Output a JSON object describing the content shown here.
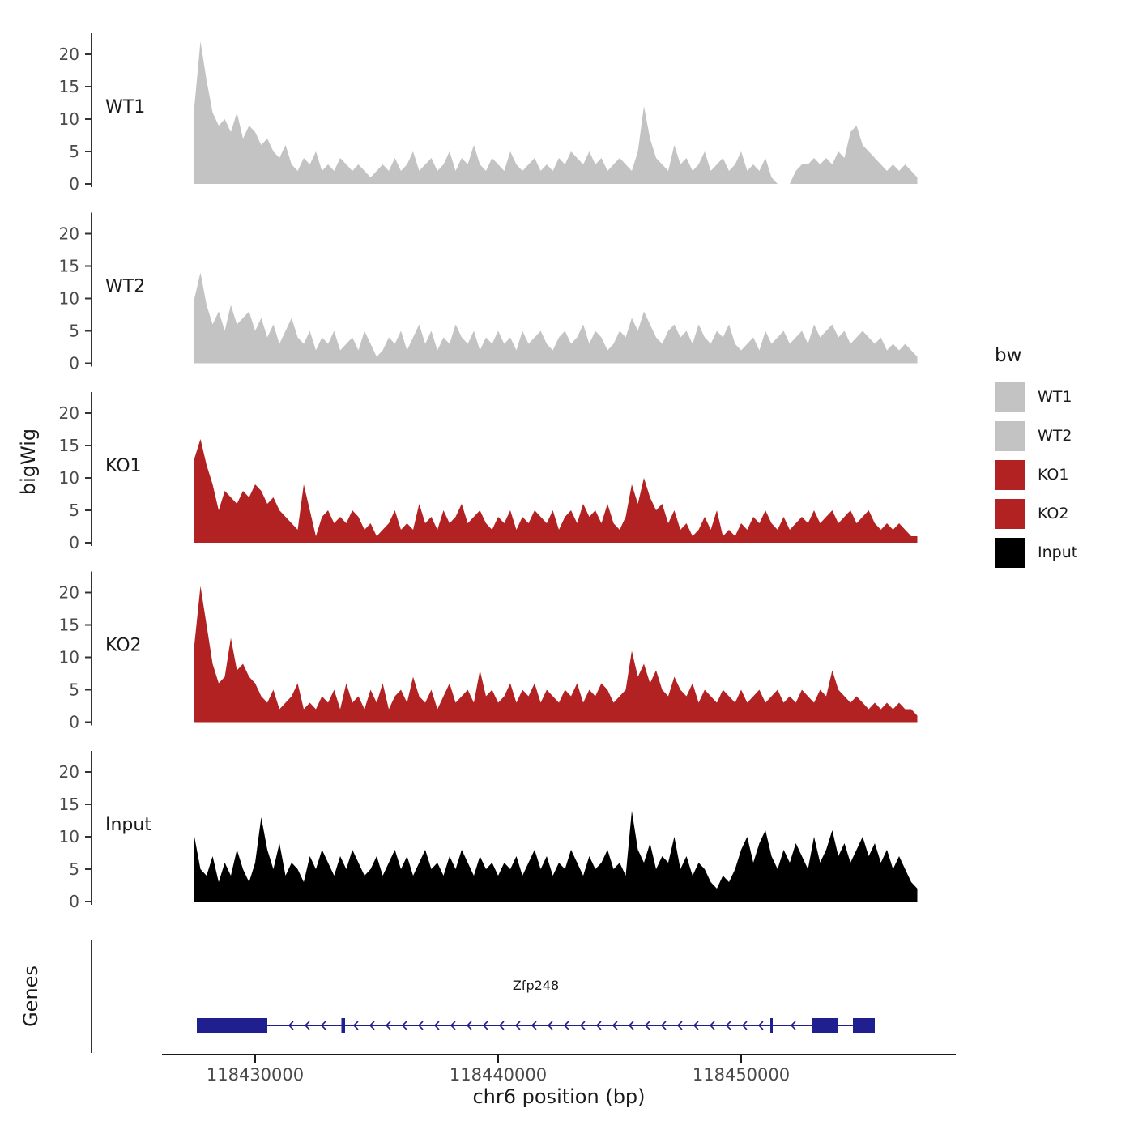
{
  "figure": {
    "y_axis_title": "bigWig",
    "genes_axis_title": "Genes",
    "x_axis_title": "chr6 position (bp)",
    "y_ticks": [
      0,
      5,
      10,
      15,
      20
    ],
    "x_ticks": [
      {
        "pos": 118430000,
        "label": "118430000"
      },
      {
        "pos": 118440000,
        "label": "118440000"
      },
      {
        "pos": 118450000,
        "label": "118450000"
      }
    ]
  },
  "legend": {
    "title": "bw",
    "items": [
      {
        "label": "WT1",
        "color": "#c3c3c3"
      },
      {
        "label": "WT2",
        "color": "#c3c3c3"
      },
      {
        "label": "KO1",
        "color": "#b22222"
      },
      {
        "label": "KO2",
        "color": "#b22222"
      },
      {
        "label": "Input",
        "color": "#000000"
      }
    ]
  },
  "gene": {
    "name": "Zfp248",
    "strand": "-",
    "chrom": "chr6",
    "start": 118427600,
    "end": 118455500,
    "color": "#1f1f90",
    "exons": [
      [
        118427600,
        118430500
      ],
      [
        118433550,
        118433700
      ],
      [
        118451200,
        118451300
      ],
      [
        118452900,
        118454000
      ],
      [
        118454600,
        118455500
      ]
    ]
  },
  "chart_data": {
    "type": "area",
    "title": "",
    "xlabel": "chr6 position (bp)",
    "ylabel": "bigWig",
    "ylim": [
      0,
      23
    ],
    "x_start": 118427500,
    "x_step": 250,
    "x_range": [
      118427500,
      118457250
    ],
    "x_tick_labels": [
      "118430000",
      "118440000",
      "118450000"
    ],
    "y_tick_labels": [
      "0",
      "5",
      "10",
      "15",
      "20"
    ],
    "legend_position": "right",
    "grid": false,
    "tracks": [
      {
        "name": "WT1",
        "color": "#c3c3c3",
        "values": [
          12,
          22,
          16,
          11,
          9,
          10,
          8,
          11,
          7,
          9,
          8,
          6,
          7,
          5,
          4,
          6,
          3,
          2,
          4,
          3,
          5,
          2,
          3,
          2,
          4,
          3,
          2,
          3,
          2,
          1,
          2,
          3,
          2,
          4,
          2,
          3,
          5,
          2,
          3,
          4,
          2,
          3,
          5,
          2,
          4,
          3,
          6,
          3,
          2,
          4,
          3,
          2,
          5,
          3,
          2,
          3,
          4,
          2,
          3,
          2,
          4,
          3,
          5,
          4,
          3,
          5,
          3,
          4,
          2,
          3,
          4,
          3,
          2,
          5,
          12,
          7,
          4,
          3,
          2,
          6,
          3,
          4,
          2,
          3,
          5,
          2,
          3,
          4,
          2,
          3,
          5,
          2,
          3,
          2,
          4,
          1,
          0,
          0,
          0,
          2,
          3,
          3,
          4,
          3,
          4,
          3,
          5,
          4,
          8,
          9,
          6,
          5,
          4,
          3,
          2,
          3,
          2,
          3,
          2,
          1
        ]
      },
      {
        "name": "WT2",
        "color": "#c3c3c3",
        "values": [
          10,
          14,
          9,
          6,
          8,
          5,
          9,
          6,
          7,
          8,
          5,
          7,
          4,
          6,
          3,
          5,
          7,
          4,
          3,
          5,
          2,
          4,
          3,
          5,
          2,
          3,
          4,
          2,
          5,
          3,
          1,
          2,
          4,
          3,
          5,
          2,
          4,
          6,
          3,
          5,
          2,
          4,
          3,
          6,
          4,
          3,
          5,
          2,
          4,
          3,
          5,
          3,
          4,
          2,
          5,
          3,
          4,
          5,
          3,
          2,
          4,
          5,
          3,
          4,
          6,
          3,
          5,
          4,
          2,
          3,
          5,
          4,
          7,
          5,
          8,
          6,
          4,
          3,
          5,
          6,
          4,
          5,
          3,
          6,
          4,
          3,
          5,
          4,
          6,
          3,
          2,
          3,
          4,
          2,
          5,
          3,
          4,
          5,
          3,
          4,
          5,
          3,
          6,
          4,
          5,
          6,
          4,
          5,
          3,
          4,
          5,
          4,
          3,
          4,
          2,
          3,
          2,
          3,
          2,
          1
        ]
      },
      {
        "name": "KO1",
        "color": "#b22222",
        "values": [
          13,
          16,
          12,
          9,
          5,
          8,
          7,
          6,
          8,
          7,
          9,
          8,
          6,
          7,
          5,
          4,
          3,
          2,
          9,
          5,
          1,
          4,
          5,
          3,
          4,
          3,
          5,
          4,
          2,
          3,
          1,
          2,
          3,
          5,
          2,
          3,
          2,
          6,
          3,
          4,
          2,
          5,
          3,
          4,
          6,
          3,
          4,
          5,
          3,
          2,
          4,
          3,
          5,
          2,
          4,
          3,
          5,
          4,
          3,
          5,
          2,
          4,
          5,
          3,
          6,
          4,
          5,
          3,
          6,
          3,
          2,
          4,
          9,
          6,
          10,
          7,
          5,
          6,
          3,
          5,
          2,
          3,
          1,
          2,
          4,
          2,
          5,
          1,
          2,
          1,
          3,
          2,
          4,
          3,
          5,
          3,
          2,
          4,
          2,
          3,
          4,
          3,
          5,
          3,
          4,
          5,
          3,
          4,
          5,
          3,
          4,
          5,
          3,
          2,
          3,
          2,
          3,
          2,
          1,
          1
        ]
      },
      {
        "name": "KO2",
        "color": "#b22222",
        "values": [
          12,
          21,
          15,
          9,
          6,
          7,
          13,
          8,
          9,
          7,
          6,
          4,
          3,
          5,
          2,
          3,
          4,
          6,
          2,
          3,
          2,
          4,
          3,
          5,
          2,
          6,
          3,
          4,
          2,
          5,
          3,
          6,
          2,
          4,
          5,
          3,
          7,
          4,
          3,
          5,
          2,
          4,
          6,
          3,
          4,
          5,
          3,
          8,
          4,
          5,
          3,
          4,
          6,
          3,
          5,
          4,
          6,
          3,
          5,
          4,
          3,
          5,
          4,
          6,
          3,
          5,
          4,
          6,
          5,
          3,
          4,
          5,
          11,
          7,
          9,
          6,
          8,
          5,
          4,
          7,
          5,
          4,
          6,
          3,
          5,
          4,
          3,
          5,
          4,
          3,
          5,
          3,
          4,
          5,
          3,
          4,
          5,
          3,
          4,
          3,
          5,
          4,
          3,
          5,
          4,
          8,
          5,
          4,
          3,
          4,
          3,
          2,
          3,
          2,
          3,
          2,
          3,
          2,
          2,
          1
        ]
      },
      {
        "name": "Input",
        "color": "#000000",
        "values": [
          10,
          5,
          4,
          7,
          3,
          6,
          4,
          8,
          5,
          3,
          6,
          13,
          8,
          5,
          9,
          4,
          6,
          5,
          3,
          7,
          5,
          8,
          6,
          4,
          7,
          5,
          8,
          6,
          4,
          5,
          7,
          4,
          6,
          8,
          5,
          7,
          4,
          6,
          8,
          5,
          6,
          4,
          7,
          5,
          8,
          6,
          4,
          7,
          5,
          6,
          4,
          6,
          5,
          7,
          4,
          6,
          8,
          5,
          7,
          4,
          6,
          5,
          8,
          6,
          4,
          7,
          5,
          6,
          8,
          5,
          6,
          4,
          14,
          8,
          6,
          9,
          5,
          7,
          6,
          10,
          5,
          7,
          4,
          6,
          5,
          3,
          2,
          4,
          3,
          5,
          8,
          10,
          6,
          9,
          11,
          7,
          5,
          8,
          6,
          9,
          7,
          5,
          10,
          6,
          8,
          11,
          7,
          9,
          6,
          8,
          10,
          7,
          9,
          6,
          8,
          5,
          7,
          5,
          3,
          2
        ]
      }
    ]
  }
}
